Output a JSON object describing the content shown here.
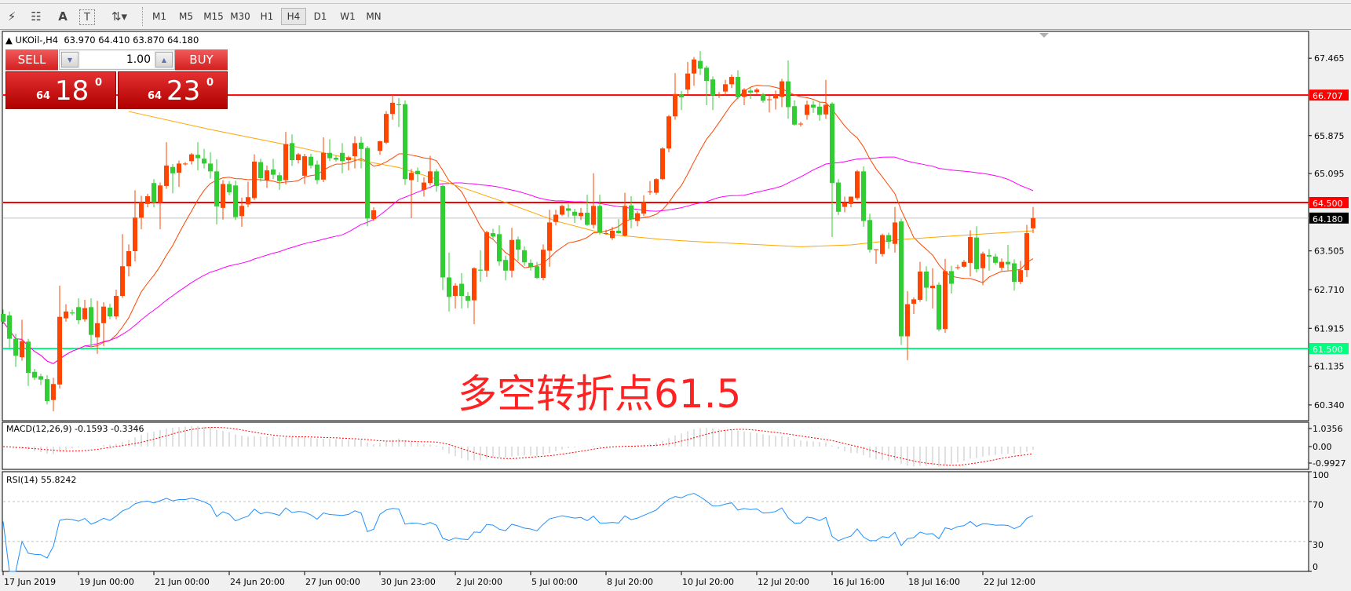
{
  "toolbar": {
    "tools": [
      {
        "icon": "elliott-wave-icon",
        "glyph": "⚡"
      },
      {
        "icon": "fibonacci-icon",
        "glyph": "☷"
      },
      {
        "icon": "text-icon",
        "glyph": "A"
      },
      {
        "icon": "text-label-icon",
        "glyph": "T"
      },
      {
        "icon": "arrows-dropdown-icon",
        "glyph": "⇅▾"
      }
    ],
    "timeframes": [
      "M1",
      "M5",
      "M15",
      "M30",
      "H1",
      "H4",
      "D1",
      "W1",
      "MN"
    ],
    "active_timeframe": "H4"
  },
  "header": {
    "symbol": "UKOil-,H4",
    "ohlc": "63.970 64.410 63.870 64.180"
  },
  "trade_panel": {
    "sell_label": "SELL",
    "buy_label": "BUY",
    "lot": "1.00",
    "sell_big": "64",
    "sell_pips": "18",
    "sell_sup": "0",
    "buy_big": "64",
    "buy_pips": "23",
    "buy_sup": "0"
  },
  "annotation": "多空转折点61.5",
  "colors": {
    "bull": "#ff4500",
    "bear": "#32cd32",
    "ma_fast": "#ff4500",
    "ma_mid": "#ff00ff",
    "ma_slow": "#ffa500",
    "resistance": "#ff0000",
    "support": "#00ff7f"
  },
  "chart_data": [
    {
      "type": "candlestick",
      "symbol": "UKOil-,H4",
      "ylim": [
        60.0,
        67.9
      ],
      "price_ticks": [
        "67.465",
        "65.875",
        "65.095",
        "63.505",
        "62.710",
        "61.915",
        "61.135",
        "60.340"
      ],
      "time_labels": [
        "17 Jun 2019",
        "19 Jun 00:00",
        "21 Jun 00:00",
        "24 Jun 20:00",
        "27 Jun 00:00",
        "30 Jun 23:00",
        "2 Jul 20:00",
        "5 Jul 00:00",
        "8 Jul 20:00",
        "10 Jul 20:00",
        "12 Jul 20:00",
        "16 Jul 16:00",
        "18 Jul 16:00",
        "22 Jul 12:00"
      ],
      "levels": [
        {
          "price": 66.707,
          "label": "66.707",
          "color": "#ff0000"
        },
        {
          "price": 64.5,
          "label": "64.500",
          "color": "#ff0000"
        },
        {
          "price": 61.5,
          "label": "61.500",
          "color": "#00ff7f"
        }
      ],
      "bid": {
        "price": 64.18,
        "label": "64.180"
      },
      "ma_slow_points": [
        [
          20,
          66.37
        ],
        [
          33,
          66.0
        ],
        [
          45,
          65.69
        ],
        [
          55,
          65.41
        ],
        [
          63,
          65.22
        ],
        [
          71,
          64.9
        ],
        [
          80,
          64.5
        ],
        [
          88,
          64.12
        ],
        [
          96,
          63.85
        ],
        [
          105,
          63.74
        ],
        [
          110,
          63.7
        ],
        [
          118,
          63.65
        ],
        [
          127,
          63.59
        ],
        [
          135,
          63.63
        ],
        [
          143,
          63.74
        ],
        [
          151,
          63.81
        ],
        [
          164,
          63.92
        ]
      ],
      "ohlc": [
        [
          62.21,
          62.3,
          62.0,
          62.05
        ],
        [
          62.18,
          62.26,
          61.51,
          61.7
        ],
        [
          61.7,
          61.8,
          61.12,
          61.35
        ],
        [
          61.32,
          62.09,
          61.25,
          61.65
        ],
        [
          61.64,
          61.7,
          60.73,
          61.0
        ],
        [
          61.02,
          61.08,
          60.85,
          60.9
        ],
        [
          60.93,
          60.98,
          60.75,
          60.86
        ],
        [
          60.87,
          60.95,
          60.35,
          60.42
        ],
        [
          60.44,
          60.9,
          60.21,
          60.77
        ],
        [
          60.76,
          62.79,
          60.68,
          62.15
        ],
        [
          62.12,
          62.41,
          62.05,
          62.26
        ],
        [
          62.24,
          62.3,
          62.18,
          62.22
        ],
        [
          62.35,
          62.53,
          62.0,
          62.08
        ],
        [
          62.1,
          62.5,
          62.05,
          62.33
        ],
        [
          62.35,
          62.53,
          61.55,
          61.78
        ],
        [
          61.73,
          62.48,
          61.39,
          62.02
        ],
        [
          62.02,
          62.45,
          61.55,
          62.36
        ],
        [
          62.34,
          62.42,
          62.1,
          62.16
        ],
        [
          62.16,
          62.71,
          62.1,
          62.58
        ],
        [
          62.58,
          63.85,
          62.54,
          63.19
        ],
        [
          63.19,
          63.64,
          62.98,
          63.5
        ],
        [
          63.5,
          64.75,
          63.29,
          64.19
        ],
        [
          64.19,
          64.64,
          63.95,
          64.5
        ],
        [
          64.47,
          64.68,
          64.4,
          64.63
        ],
        [
          64.9,
          64.98,
          64.4,
          64.5
        ],
        [
          64.5,
          64.91,
          63.95,
          64.85
        ],
        [
          64.84,
          65.74,
          64.78,
          65.26
        ],
        [
          65.23,
          65.29,
          64.69,
          65.1
        ],
        [
          65.11,
          65.36,
          64.82,
          65.3
        ],
        [
          65.3,
          65.33,
          65.26,
          65.3
        ],
        [
          65.35,
          65.52,
          65.28,
          65.49
        ],
        [
          65.48,
          65.74,
          65.16,
          65.41
        ],
        [
          65.4,
          65.6,
          65.2,
          65.3
        ],
        [
          65.3,
          65.53,
          64.99,
          65.14
        ],
        [
          65.14,
          65.39,
          64.05,
          64.42
        ],
        [
          64.39,
          64.96,
          64.15,
          64.88
        ],
        [
          64.88,
          64.94,
          64.65,
          64.71
        ],
        [
          64.85,
          64.95,
          64.14,
          64.2
        ],
        [
          64.22,
          64.6,
          64.0,
          64.43
        ],
        [
          64.46,
          64.93,
          64.4,
          64.61
        ],
        [
          64.59,
          65.49,
          64.55,
          65.34
        ],
        [
          65.33,
          65.4,
          64.93,
          65.0
        ],
        [
          64.96,
          65.26,
          64.8,
          65.16
        ],
        [
          65.18,
          65.4,
          64.98,
          65.07
        ],
        [
          65.06,
          65.12,
          64.76,
          64.94
        ],
        [
          64.96,
          65.95,
          64.87,
          65.7
        ],
        [
          65.72,
          65.9,
          65.25,
          65.37
        ],
        [
          65.37,
          65.52,
          65.3,
          65.49
        ],
        [
          65.05,
          65.5,
          64.88,
          65.45
        ],
        [
          65.44,
          65.5,
          65.2,
          65.26
        ],
        [
          65.28,
          65.36,
          64.88,
          64.96
        ],
        [
          64.97,
          65.84,
          64.92,
          65.52
        ],
        [
          65.52,
          65.8,
          65.35,
          65.41
        ],
        [
          65.42,
          65.46,
          65.34,
          65.38
        ],
        [
          65.52,
          65.72,
          65.1,
          65.35
        ],
        [
          65.37,
          65.46,
          65.16,
          65.43
        ],
        [
          65.45,
          65.86,
          65.2,
          65.72
        ],
        [
          65.73,
          65.85,
          65.2,
          65.6
        ],
        [
          65.62,
          65.66,
          64.01,
          64.17
        ],
        [
          64.16,
          64.4,
          64.12,
          64.34
        ],
        [
          65.56,
          65.77,
          65.48,
          65.76
        ],
        [
          65.73,
          66.38,
          65.7,
          66.32
        ],
        [
          66.32,
          66.71,
          66.2,
          66.55
        ],
        [
          66.52,
          66.65,
          66.05,
          66.5
        ],
        [
          66.52,
          66.6,
          64.86,
          64.98
        ],
        [
          64.96,
          65.19,
          64.18,
          65.11
        ],
        [
          65.15,
          65.22,
          64.92,
          65.08
        ],
        [
          64.76,
          65.02,
          64.62,
          64.91
        ],
        [
          64.9,
          65.46,
          64.85,
          65.14
        ],
        [
          65.14,
          65.19,
          64.72,
          64.84
        ],
        [
          64.84,
          64.87,
          62.7,
          62.96
        ],
        [
          62.96,
          63.47,
          62.26,
          62.56
        ],
        [
          62.58,
          62.84,
          62.32,
          62.79
        ],
        [
          62.83,
          63.05,
          62.32,
          62.58
        ],
        [
          62.58,
          62.66,
          62.33,
          62.48
        ],
        [
          62.49,
          63.17,
          62.0,
          63.15
        ],
        [
          63.12,
          63.52,
          62.87,
          63.1
        ],
        [
          63.1,
          63.92,
          62.97,
          63.89
        ],
        [
          63.87,
          63.96,
          63.75,
          63.8
        ],
        [
          63.85,
          64.03,
          63.2,
          63.29
        ],
        [
          63.32,
          63.41,
          62.9,
          63.1
        ],
        [
          63.1,
          63.98,
          62.96,
          63.73
        ],
        [
          63.74,
          63.8,
          63.3,
          63.53
        ],
        [
          63.52,
          63.6,
          63.2,
          63.27
        ],
        [
          63.26,
          63.33,
          63.1,
          63.17
        ],
        [
          63.19,
          63.28,
          62.93,
          62.95
        ],
        [
          62.95,
          63.64,
          62.9,
          63.53
        ],
        [
          63.51,
          64.35,
          63.18,
          64.09
        ],
        [
          64.1,
          64.35,
          64.03,
          64.25
        ],
        [
          64.25,
          64.45,
          64.22,
          64.43
        ],
        [
          64.38,
          64.47,
          64.2,
          64.33
        ],
        [
          64.31,
          64.37,
          64.08,
          64.23
        ],
        [
          64.22,
          64.39,
          64.14,
          64.29
        ],
        [
          64.29,
          64.66,
          64.02,
          64.04
        ],
        [
          64.04,
          65.1,
          63.97,
          64.43
        ],
        [
          64.43,
          64.66,
          63.84,
          63.88
        ],
        [
          63.87,
          63.94,
          63.84,
          63.87
        ],
        [
          63.77,
          64.0,
          63.73,
          63.92
        ],
        [
          63.92,
          64.16,
          63.86,
          63.87
        ],
        [
          63.82,
          64.7,
          63.8,
          64.43
        ],
        [
          64.44,
          64.63,
          63.97,
          64.16
        ],
        [
          64.12,
          64.32,
          64.01,
          64.28
        ],
        [
          64.27,
          64.65,
          64.22,
          64.5
        ],
        [
          64.73,
          64.94,
          64.66,
          64.73
        ],
        [
          64.7,
          65.0,
          64.66,
          64.98
        ],
        [
          64.98,
          65.64,
          64.96,
          65.61
        ],
        [
          65.61,
          66.3,
          65.53,
          66.27
        ],
        [
          66.27,
          67.16,
          66.2,
          66.73
        ],
        [
          66.72,
          66.79,
          66.4,
          66.66
        ],
        [
          66.82,
          67.39,
          66.73,
          67.15
        ],
        [
          67.15,
          67.49,
          66.9,
          67.44
        ],
        [
          67.41,
          67.61,
          67.12,
          67.25
        ],
        [
          67.27,
          67.31,
          66.5,
          67.0
        ],
        [
          67.03,
          67.09,
          66.4,
          66.7
        ],
        [
          66.72,
          66.77,
          66.65,
          66.72
        ],
        [
          66.78,
          67.02,
          66.7,
          66.93
        ],
        [
          66.93,
          67.13,
          66.85,
          67.08
        ],
        [
          67.08,
          67.22,
          66.62,
          66.66
        ],
        [
          66.67,
          66.85,
          66.5,
          66.82
        ],
        [
          66.8,
          66.87,
          66.63,
          66.76
        ],
        [
          66.77,
          66.85,
          66.73,
          66.82
        ],
        [
          66.72,
          66.75,
          66.55,
          66.59
        ],
        [
          66.62,
          66.7,
          66.35,
          66.62
        ],
        [
          66.64,
          66.8,
          66.41,
          66.71
        ],
        [
          66.67,
          67.04,
          66.46,
          66.99
        ],
        [
          66.99,
          67.42,
          66.22,
          66.46
        ],
        [
          66.48,
          66.6,
          66.08,
          66.1
        ],
        [
          66.12,
          66.16,
          66.06,
          66.12
        ],
        [
          66.3,
          66.59,
          66.2,
          66.51
        ],
        [
          66.51,
          66.59,
          66.34,
          66.45
        ],
        [
          66.47,
          66.57,
          66.18,
          66.3
        ],
        [
          66.31,
          67.02,
          66.22,
          66.51
        ],
        [
          66.53,
          66.56,
          63.79,
          64.9
        ],
        [
          64.91,
          64.98,
          64.24,
          64.31
        ],
        [
          64.41,
          64.62,
          64.3,
          64.49
        ],
        [
          64.47,
          64.62,
          64.4,
          64.62
        ],
        [
          64.59,
          65.17,
          64.55,
          65.14
        ],
        [
          65.14,
          65.24,
          64.0,
          64.12
        ],
        [
          64.14,
          64.27,
          63.47,
          63.53
        ],
        [
          63.54,
          63.54,
          63.24,
          63.54
        ],
        [
          63.44,
          63.86,
          63.39,
          63.83
        ],
        [
          63.83,
          63.88,
          63.55,
          63.69
        ],
        [
          63.65,
          64.41,
          63.47,
          64.09
        ],
        [
          64.11,
          64.17,
          61.57,
          61.75
        ],
        [
          61.75,
          62.68,
          61.26,
          62.41
        ],
        [
          62.42,
          62.55,
          62.21,
          62.51
        ],
        [
          62.5,
          63.28,
          62.46,
          63.08
        ],
        [
          63.08,
          63.19,
          62.47,
          62.75
        ],
        [
          62.74,
          63.15,
          62.32,
          62.79
        ],
        [
          62.81,
          62.86,
          61.85,
          61.89
        ],
        [
          61.9,
          63.34,
          61.82,
          63.09
        ],
        [
          63.09,
          63.2,
          62.63,
          62.83
        ],
        [
          63.17,
          63.22,
          63.12,
          63.17
        ],
        [
          63.18,
          63.32,
          63.16,
          63.28
        ],
        [
          63.26,
          63.93,
          62.98,
          63.79
        ],
        [
          63.78,
          64.01,
          63.06,
          63.13
        ],
        [
          63.15,
          63.49,
          62.8,
          63.45
        ],
        [
          63.42,
          63.54,
          63.1,
          63.39
        ],
        [
          63.39,
          63.45,
          63.22,
          63.26
        ],
        [
          63.16,
          63.35,
          63.1,
          63.28
        ],
        [
          63.28,
          63.63,
          63.1,
          63.23
        ],
        [
          63.25,
          63.33,
          62.69,
          62.87
        ],
        [
          62.87,
          63.3,
          62.82,
          63.11
        ],
        [
          63.11,
          64.04,
          62.97,
          63.87
        ],
        [
          63.97,
          64.41,
          63.87,
          64.18
        ]
      ]
    },
    {
      "type": "histogram",
      "title": "MACD(12,26,9) -0.1593 -0.3346",
      "ticks": [
        "1.0356",
        "0.00",
        "-0.9927"
      ]
    },
    {
      "type": "line",
      "title": "RSI(14) 55.8242",
      "ticks": [
        "100",
        "70",
        "30",
        "0"
      ],
      "levels": [
        70,
        30
      ]
    }
  ]
}
